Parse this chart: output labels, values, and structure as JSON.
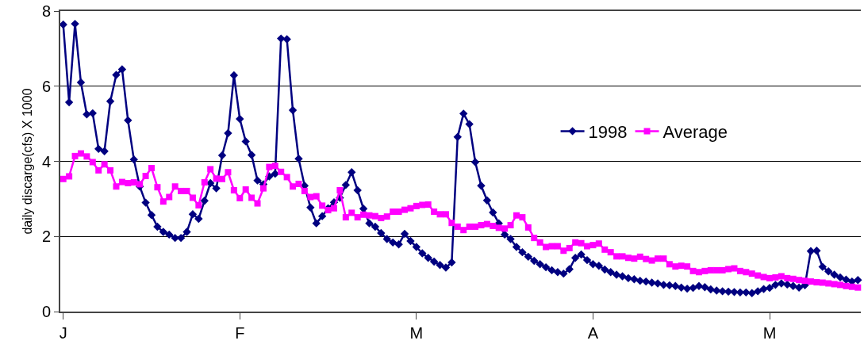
{
  "chart_data": {
    "type": "line",
    "ylabel": "daily discarge(cfs) X 1000",
    "categories": [
      "J",
      null,
      null,
      null,
      null,
      null,
      null,
      null,
      null,
      null,
      null,
      null,
      null,
      null,
      null,
      null,
      null,
      null,
      null,
      null,
      null,
      null,
      null,
      null,
      null,
      null,
      null,
      null,
      null,
      null,
      "F",
      null,
      null,
      null,
      null,
      null,
      null,
      null,
      null,
      null,
      null,
      null,
      null,
      null,
      null,
      null,
      null,
      null,
      null,
      null,
      null,
      null,
      null,
      null,
      null,
      null,
      null,
      null,
      null,
      null,
      "M",
      null,
      null,
      null,
      null,
      null,
      null,
      null,
      null,
      null,
      null,
      null,
      null,
      null,
      null,
      null,
      null,
      null,
      null,
      null,
      null,
      null,
      null,
      null,
      null,
      null,
      null,
      null,
      null,
      null,
      "A",
      null,
      null,
      null,
      null,
      null,
      null,
      null,
      null,
      null,
      null,
      null,
      null,
      null,
      null,
      null,
      null,
      null,
      null,
      null,
      null,
      null,
      null,
      null,
      null,
      null,
      null,
      null,
      null,
      null,
      "M",
      null,
      null,
      null,
      null,
      null,
      null,
      null,
      null,
      null,
      null,
      null,
      null,
      null,
      null,
      null
    ],
    "series": [
      {
        "name": "1998",
        "color": "#000080",
        "marker": "diamond",
        "values": [
          7.64,
          5.57,
          7.66,
          6.1,
          5.25,
          5.28,
          4.33,
          4.27,
          5.6,
          6.3,
          6.45,
          5.09,
          4.05,
          3.33,
          2.9,
          2.57,
          2.26,
          2.12,
          2.05,
          1.96,
          1.96,
          2.12,
          2.59,
          2.47,
          2.95,
          3.42,
          3.28,
          4.16,
          4.75,
          6.29,
          5.13,
          4.53,
          4.17,
          3.49,
          3.39,
          3.6,
          3.67,
          7.27,
          7.25,
          5.36,
          4.07,
          3.35,
          2.77,
          2.35,
          2.54,
          2.75,
          2.91,
          3.03,
          3.37,
          3.71,
          3.23,
          2.74,
          2.35,
          2.26,
          2.09,
          1.93,
          1.84,
          1.79,
          2.07,
          1.88,
          1.72,
          1.55,
          1.43,
          1.33,
          1.24,
          1.17,
          1.31,
          4.65,
          5.27,
          4.99,
          3.98,
          3.35,
          2.96,
          2.64,
          2.35,
          2.05,
          1.93,
          1.72,
          1.58,
          1.46,
          1.35,
          1.26,
          1.18,
          1.1,
          1.05,
          1.01,
          1.13,
          1.43,
          1.52,
          1.37,
          1.26,
          1.22,
          1.12,
          1.05,
          0.98,
          0.94,
          0.89,
          0.86,
          0.82,
          0.8,
          0.77,
          0.75,
          0.71,
          0.7,
          0.68,
          0.64,
          0.61,
          0.63,
          0.68,
          0.65,
          0.59,
          0.56,
          0.54,
          0.53,
          0.52,
          0.51,
          0.51,
          0.49,
          0.54,
          0.6,
          0.63,
          0.71,
          0.75,
          0.72,
          0.68,
          0.64,
          0.7,
          1.61,
          1.62,
          1.19,
          1.07,
          0.98,
          0.91,
          0.85,
          0.8,
          0.84
        ]
      },
      {
        "name": "Average",
        "color": "#ff00ff",
        "marker": "square",
        "values": [
          3.53,
          3.6,
          4.14,
          4.21,
          4.13,
          3.98,
          3.76,
          3.92,
          3.76,
          3.33,
          3.45,
          3.42,
          3.44,
          3.39,
          3.61,
          3.82,
          3.31,
          2.93,
          3.05,
          3.33,
          3.21,
          3.21,
          3.03,
          2.83,
          3.44,
          3.79,
          3.54,
          3.53,
          3.71,
          3.23,
          3.02,
          3.25,
          3.03,
          2.88,
          3.28,
          3.85,
          3.88,
          3.72,
          3.58,
          3.33,
          3.4,
          3.21,
          3.05,
          3.07,
          2.82,
          2.7,
          2.75,
          3.23,
          2.51,
          2.63,
          2.51,
          2.58,
          2.56,
          2.54,
          2.49,
          2.53,
          2.66,
          2.66,
          2.71,
          2.75,
          2.81,
          2.84,
          2.85,
          2.66,
          2.59,
          2.59,
          2.36,
          2.26,
          2.17,
          2.26,
          2.26,
          2.3,
          2.33,
          2.28,
          2.23,
          2.21,
          2.3,
          2.56,
          2.51,
          2.24,
          1.96,
          1.84,
          1.72,
          1.74,
          1.74,
          1.62,
          1.69,
          1.84,
          1.82,
          1.74,
          1.77,
          1.81,
          1.65,
          1.58,
          1.47,
          1.47,
          1.43,
          1.41,
          1.46,
          1.4,
          1.36,
          1.41,
          1.41,
          1.26,
          1.2,
          1.22,
          1.2,
          1.08,
          1.05,
          1.08,
          1.1,
          1.1,
          1.1,
          1.13,
          1.15,
          1.08,
          1.05,
          1.01,
          0.96,
          0.92,
          0.89,
          0.91,
          0.94,
          0.89,
          0.87,
          0.84,
          0.82,
          0.8,
          0.78,
          0.77,
          0.75,
          0.73,
          0.71,
          0.68,
          0.66,
          0.64
        ]
      }
    ],
    "ylim": [
      0,
      8
    ],
    "yticks": [
      0,
      2,
      4,
      6,
      8
    ],
    "grid": "y",
    "legend": "right",
    "line_style": "solid"
  }
}
